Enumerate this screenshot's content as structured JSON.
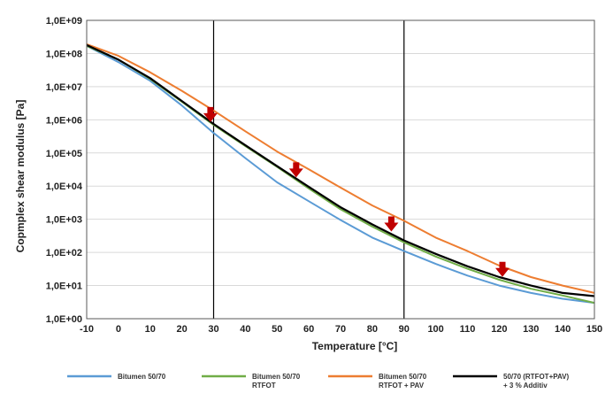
{
  "chart_data": {
    "type": "line",
    "xlabel": "Temperature [°C]",
    "ylabel": "Copmplex shear modulus [Pa]",
    "xlim": [
      -10,
      150
    ],
    "ylim": [
      1,
      1000000000
    ],
    "yscale": "log",
    "grid": "horizontal",
    "x_ticks": [
      "-10",
      "0",
      "10",
      "20",
      "30",
      "40",
      "50",
      "60",
      "70",
      "80",
      "90",
      "100",
      "110",
      "120",
      "130",
      "140",
      "150"
    ],
    "y_ticks": [
      "1,0E+00",
      "1,0E+01",
      "1,0E+02",
      "1,0E+03",
      "1,0E+04",
      "1,0E+05",
      "1,0E+06",
      "1,0E+07",
      "1,0E+08",
      "1,0E+09"
    ],
    "vertical_lines": [
      30,
      90
    ],
    "x": [
      -10,
      0,
      10,
      20,
      30,
      40,
      50,
      60,
      70,
      80,
      90,
      100,
      110,
      120,
      130,
      140,
      150
    ],
    "series": [
      {
        "name": "Bitumen 50/70",
        "color": "#5b9bd5",
        "values": [
          170000000,
          55000000,
          15000000,
          2700000,
          400000,
          70000,
          13000,
          3500,
          950,
          280,
          110,
          45,
          20,
          10,
          6,
          4,
          3
        ]
      },
      {
        "name": "Bitumen 50/70\nRTFOT",
        "color": "#70ad47",
        "values": [
          170000000,
          65000000,
          17000000,
          3500000,
          700000,
          160000,
          38000,
          8500,
          2000,
          600,
          200,
          75,
          32,
          15,
          8,
          5,
          3
        ]
      },
      {
        "name": "Bitumen 50/70\nRTFOT + PAV",
        "color": "#ed7d31",
        "values": [
          190000000,
          85000000,
          27000000,
          7500000,
          1900000,
          450000,
          110000,
          32000,
          9000,
          2600,
          900,
          280,
          110,
          40,
          18,
          10,
          6
        ]
      },
      {
        "name": "50/70 (RTFOT+PAV)\n+ 3 % Additiv",
        "color": "#000000",
        "values": [
          180000000,
          65000000,
          18000000,
          3700000,
          750000,
          170000,
          40000,
          9500,
          2300,
          700,
          230,
          90,
          38,
          18,
          10,
          6,
          4.8
        ]
      }
    ],
    "arrows": [
      {
        "x": 29,
        "y": 1400000
      },
      {
        "x": 56,
        "y": 30000
      },
      {
        "x": 86,
        "y": 700
      },
      {
        "x": 121,
        "y": 30
      }
    ],
    "arrow_color": "#c00000",
    "legend_position": "bottom"
  }
}
